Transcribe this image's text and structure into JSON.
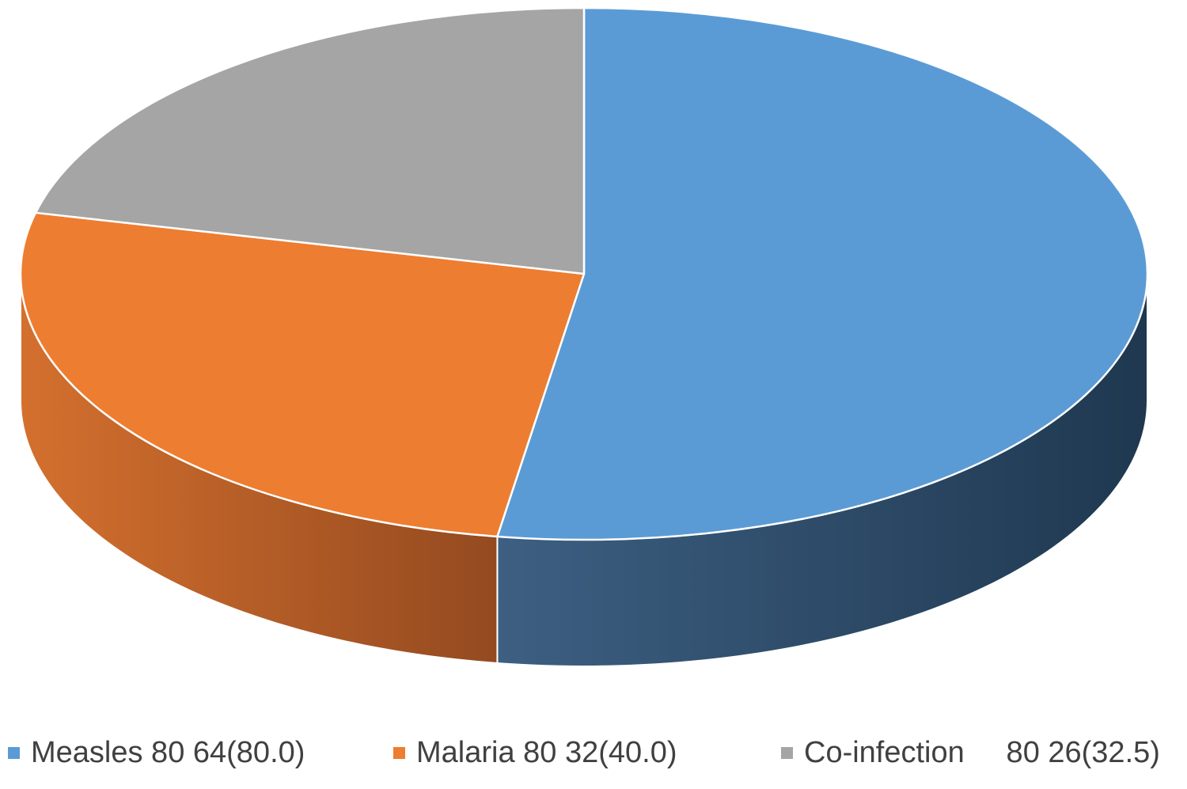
{
  "chart_data": {
    "type": "pie",
    "title": "",
    "style": "3d",
    "legend_position": "bottom",
    "slices": [
      {
        "label": "Measles 80 64(80.0)",
        "value": 80.0,
        "color": "#5B9BD5",
        "side_color": "#2E4A66"
      },
      {
        "label": "Malaria 80 32(40.0)",
        "value": 40.0,
        "color": "#ED7D31",
        "side_color": "#B55E25"
      },
      {
        "label": "Co-infection     80 26(32.5)",
        "value": 32.5,
        "color": "#A5A5A5",
        "side_color": "#7E7E7E"
      }
    ]
  }
}
